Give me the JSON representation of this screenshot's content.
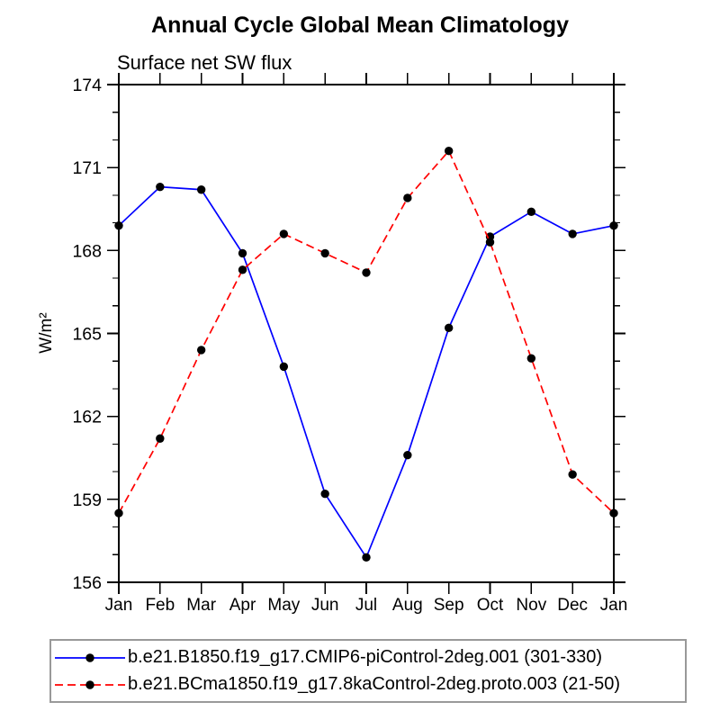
{
  "title": "Annual Cycle Global Mean Climatology",
  "chart_data": {
    "type": "line",
    "subtitle": "Surface net SW flux",
    "xlabel": "",
    "ylabel": "W/m²",
    "categories": [
      "Jan",
      "Feb",
      "Mar",
      "Apr",
      "May",
      "Jun",
      "Jul",
      "Aug",
      "Sep",
      "Oct",
      "Nov",
      "Dec",
      "Jan"
    ],
    "ylim": [
      156,
      174
    ],
    "ytick_major": 3,
    "ytick_minor": 1,
    "grid": false,
    "legend_position": "bottom",
    "frame_color": "#000000",
    "legend_border_color": "#999999",
    "series": [
      {
        "name": "b.e21.B1850.f19_g17.CMIP6-piControl-2deg.001 (301-330)",
        "color": "#0000ff",
        "style": "solid",
        "marker": "circle",
        "marker_color": "#000000",
        "values": [
          168.9,
          170.3,
          170.2,
          167.9,
          163.8,
          159.2,
          156.9,
          160.6,
          165.2,
          168.5,
          169.4,
          168.6,
          168.9
        ]
      },
      {
        "name": "b.e21.BCma1850.f19_g17.8kaControl-2deg.proto.003 (21-50)",
        "color": "#ff0000",
        "style": "dashed",
        "marker": "circle",
        "marker_color": "#000000",
        "values": [
          158.5,
          161.2,
          164.4,
          167.3,
          168.6,
          167.9,
          167.2,
          169.9,
          171.6,
          168.3,
          164.1,
          159.9,
          158.5
        ]
      }
    ]
  }
}
